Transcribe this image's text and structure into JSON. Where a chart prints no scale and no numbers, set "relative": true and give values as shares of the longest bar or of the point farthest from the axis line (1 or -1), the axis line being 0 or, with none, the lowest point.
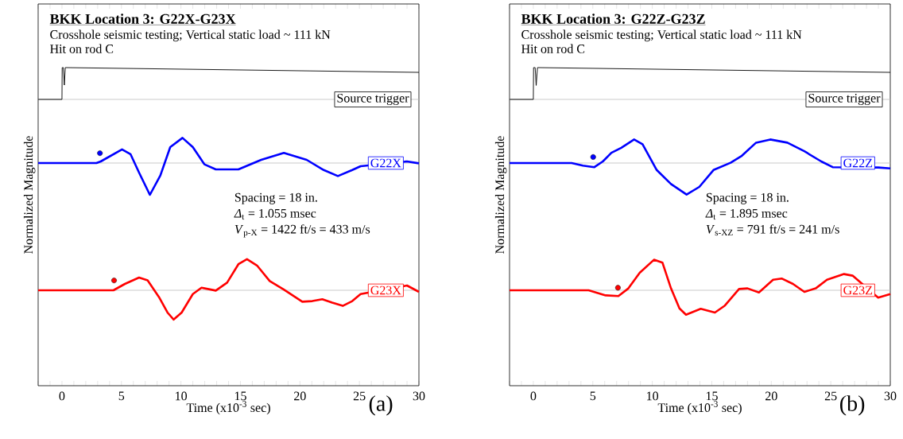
{
  "chart_data": [
    {
      "type": "line",
      "title": "BKK Location 3: G22X-G23X",
      "subtitle": "Crosshole seismic testing; Vertical static load ~ 111 kN",
      "xlabel": "Time (x10$^{-3}$ sec)",
      "ylabel": "Normalized Magnitude",
      "relative": true,
      "tick_labels": "x",
      "annotations": [
        "Hit on rod C",
        "Spacing = 18 in.",
        "*Δ*$_{t}$ = 1.055 msec",
        "*V*$_{p-X}$ = 1422 ft/s = 433 m/s",
        "(a)"
      ],
      "xlim": [
        -2,
        30
      ],
      "xticks": [
        {
          "value": -2,
          "label": null
        },
        {
          "value": -1,
          "label": null
        },
        0,
        {
          "value": 1,
          "label": null
        },
        {
          "value": 2,
          "label": null
        },
        {
          "value": 3,
          "label": null
        },
        {
          "value": 4,
          "label": null
        },
        5,
        {
          "value": 6,
          "label": null
        },
        {
          "value": 7,
          "label": null
        },
        {
          "value": 8,
          "label": null
        },
        {
          "value": 9,
          "label": null
        },
        10,
        {
          "value": 11,
          "label": null
        },
        {
          "value": 12,
          "label": null
        },
        {
          "value": 13,
          "label": null
        },
        {
          "value": 14,
          "label": null
        },
        15,
        {
          "value": 16,
          "label": null
        },
        {
          "value": 17,
          "label": null
        },
        {
          "value": 18,
          "label": null
        },
        {
          "value": 19,
          "label": null
        },
        20,
        {
          "value": 21,
          "label": null
        },
        {
          "value": 22,
          "label": null
        },
        {
          "value": 23,
          "label": null
        },
        {
          "value": 24,
          "label": null
        },
        25,
        {
          "value": 26,
          "label": null
        },
        {
          "value": 27,
          "label": null
        },
        {
          "value": 28,
          "label": null
        },
        {
          "value": 29,
          "label": null
        },
        30
      ],
      "ref_lines": [
        {
          "axis": "y",
          "value": 0.9,
          "color": "#bebebe"
        },
        {
          "axis": "y",
          "value": 0.7,
          "color": "#bebebe"
        },
        {
          "axis": "y",
          "value": 0.3,
          "color": "#bebebe"
        }
      ],
      "series": [
        {
          "name": "Source trigger",
          "color": "#000000",
          "x": [
            -2,
            0,
            0.02,
            0.12,
            0.2,
            0.28,
            30
          ],
          "values": [
            0.9,
            0.9,
            1.0,
            1.0,
            0.945,
            1.0,
            0.985
          ]
        },
        {
          "name": "G22X",
          "color": "#0000ff",
          "x": [
            -2,
            2.9,
            3.26,
            5.05,
            5.76,
            6.48,
            7.39,
            8.27,
            9.1,
            10.13,
            11.0,
            11.97,
            12.93,
            14.83,
            16.74,
            18.65,
            20.57,
            22.0,
            23.19,
            24.4,
            25.1,
            29.0,
            30
          ],
          "values": [
            0.7,
            0.7,
            0.705,
            0.743,
            0.728,
            0.67,
            0.6,
            0.661,
            0.75,
            0.779,
            0.75,
            0.696,
            0.68,
            0.68,
            0.71,
            0.732,
            0.71,
            0.678,
            0.659,
            0.678,
            0.69,
            0.705,
            0.699
          ]
        },
        {
          "name": "G23X",
          "color": "#ff0000",
          "x": [
            -2,
            4.33,
            5.29,
            6.48,
            7.2,
            8.15,
            8.87,
            9.39,
            10.06,
            11.0,
            11.73,
            12.93,
            13.88,
            14.83,
            15.55,
            16.39,
            17.46,
            18.65,
            20.2,
            21.04,
            21.88,
            22.71,
            23.6,
            24.4,
            25.1,
            29.0,
            30
          ],
          "values": [
            0.3,
            0.3,
            0.32,
            0.34,
            0.331,
            0.279,
            0.23,
            0.208,
            0.23,
            0.288,
            0.308,
            0.299,
            0.324,
            0.382,
            0.398,
            0.378,
            0.329,
            0.302,
            0.264,
            0.266,
            0.272,
            0.261,
            0.251,
            0.266,
            0.288,
            0.315,
            0.295
          ]
        },
        {
          "type": "scatter",
          "marker": "circle",
          "color": "#0000ff",
          "x": [
            3.19
          ],
          "values": [
            0.731
          ]
        },
        {
          "type": "scatter",
          "marker": "circle",
          "color": "#ff0000",
          "x": [
            4.38
          ],
          "values": [
            0.331
          ]
        }
      ]
    },
    {
      "type": "line",
      "title": "BKK Location 3: G22Z-G23Z",
      "subtitle": "Crosshole seismic testing; Vertical static load ~ 111 kN",
      "xlabel": "Time (x10$^{-3}$ sec)",
      "ylabel": "Normalized Magnitude",
      "relative": true,
      "tick_labels": "x",
      "annotations": [
        "Hit on rod C",
        "Spacing = 18 in.",
        "*Δ*$_{t}$ = 1.895 msec",
        "*V*$_{s-XZ}$ = 791 ft/s = 241 m/s",
        "(b)"
      ],
      "xlim": [
        -2,
        30
      ],
      "xticks": [
        {
          "value": -2,
          "label": null
        },
        {
          "value": -1,
          "label": null
        },
        0,
        {
          "value": 1,
          "label": null
        },
        {
          "value": 2,
          "label": null
        },
        {
          "value": 3,
          "label": null
        },
        {
          "value": 4,
          "label": null
        },
        5,
        {
          "value": 6,
          "label": null
        },
        {
          "value": 7,
          "label": null
        },
        {
          "value": 8,
          "label": null
        },
        {
          "value": 9,
          "label": null
        },
        10,
        {
          "value": 11,
          "label": null
        },
        {
          "value": 12,
          "label": null
        },
        {
          "value": 13,
          "label": null
        },
        {
          "value": 14,
          "label": null
        },
        15,
        {
          "value": 16,
          "label": null
        },
        {
          "value": 17,
          "label": null
        },
        {
          "value": 18,
          "label": null
        },
        {
          "value": 19,
          "label": null
        },
        20,
        {
          "value": 21,
          "label": null
        },
        {
          "value": 22,
          "label": null
        },
        {
          "value": 23,
          "label": null
        },
        {
          "value": 24,
          "label": null
        },
        25,
        {
          "value": 26,
          "label": null
        },
        {
          "value": 27,
          "label": null
        },
        {
          "value": 28,
          "label": null
        },
        {
          "value": 29,
          "label": null
        },
        30
      ],
      "ref_lines": [
        {
          "axis": "y",
          "value": 0.9,
          "color": "#bebebe"
        },
        {
          "axis": "y",
          "value": 0.7,
          "color": "#bebebe"
        },
        {
          "axis": "y",
          "value": 0.3,
          "color": "#bebebe"
        }
      ],
      "series": [
        {
          "name": "Source trigger",
          "color": "#000000",
          "x": [
            -2,
            0,
            0.02,
            0.15,
            0.24,
            0.35,
            30
          ],
          "values": [
            0.9,
            0.9,
            1.0,
            1.0,
            0.944,
            1.0,
            0.985
          ]
        },
        {
          "name": "G22Z",
          "color": "#0000ff",
          "x": [
            -2,
            3.22,
            4.17,
            5.13,
            5.84,
            6.56,
            7.39,
            8.47,
            9.18,
            10.37,
            11.57,
            12.88,
            13.95,
            15.14,
            16.58,
            17.53,
            18.72,
            19.91,
            21.35,
            22.78,
            24.2,
            25.16,
            28.98,
            30
          ],
          "values": [
            0.7,
            0.7,
            0.692,
            0.687,
            0.705,
            0.732,
            0.748,
            0.774,
            0.759,
            0.678,
            0.634,
            0.601,
            0.625,
            0.678,
            0.701,
            0.723,
            0.764,
            0.774,
            0.764,
            0.737,
            0.705,
            0.687,
            0.686,
            0.683
          ]
        },
        {
          "name": "G23Z",
          "color": "#ff0000",
          "x": [
            -2,
            4.65,
            6.08,
            7.15,
            7.99,
            8.94,
            10.14,
            10.85,
            11.57,
            12.28,
            12.83,
            14.07,
            15.26,
            16.1,
            17.29,
            18.0,
            18.96,
            20.15,
            20.87,
            21.82,
            22.78,
            23.73,
            24.68,
            26.11,
            26.83,
            28.98,
            30
          ],
          "values": [
            0.3,
            0.3,
            0.284,
            0.282,
            0.306,
            0.355,
            0.396,
            0.387,
            0.306,
            0.243,
            0.223,
            0.242,
            0.23,
            0.252,
            0.304,
            0.306,
            0.293,
            0.333,
            0.337,
            0.32,
            0.295,
            0.306,
            0.333,
            0.351,
            0.346,
            0.277,
            0.288
          ]
        },
        {
          "type": "scatter",
          "marker": "circle",
          "color": "#0000ff",
          "x": [
            5.03
          ],
          "values": [
            0.719
          ]
        },
        {
          "type": "scatter",
          "marker": "circle",
          "color": "#ff0000",
          "x": [
            7.11
          ],
          "values": [
            0.308
          ]
        }
      ]
    }
  ]
}
